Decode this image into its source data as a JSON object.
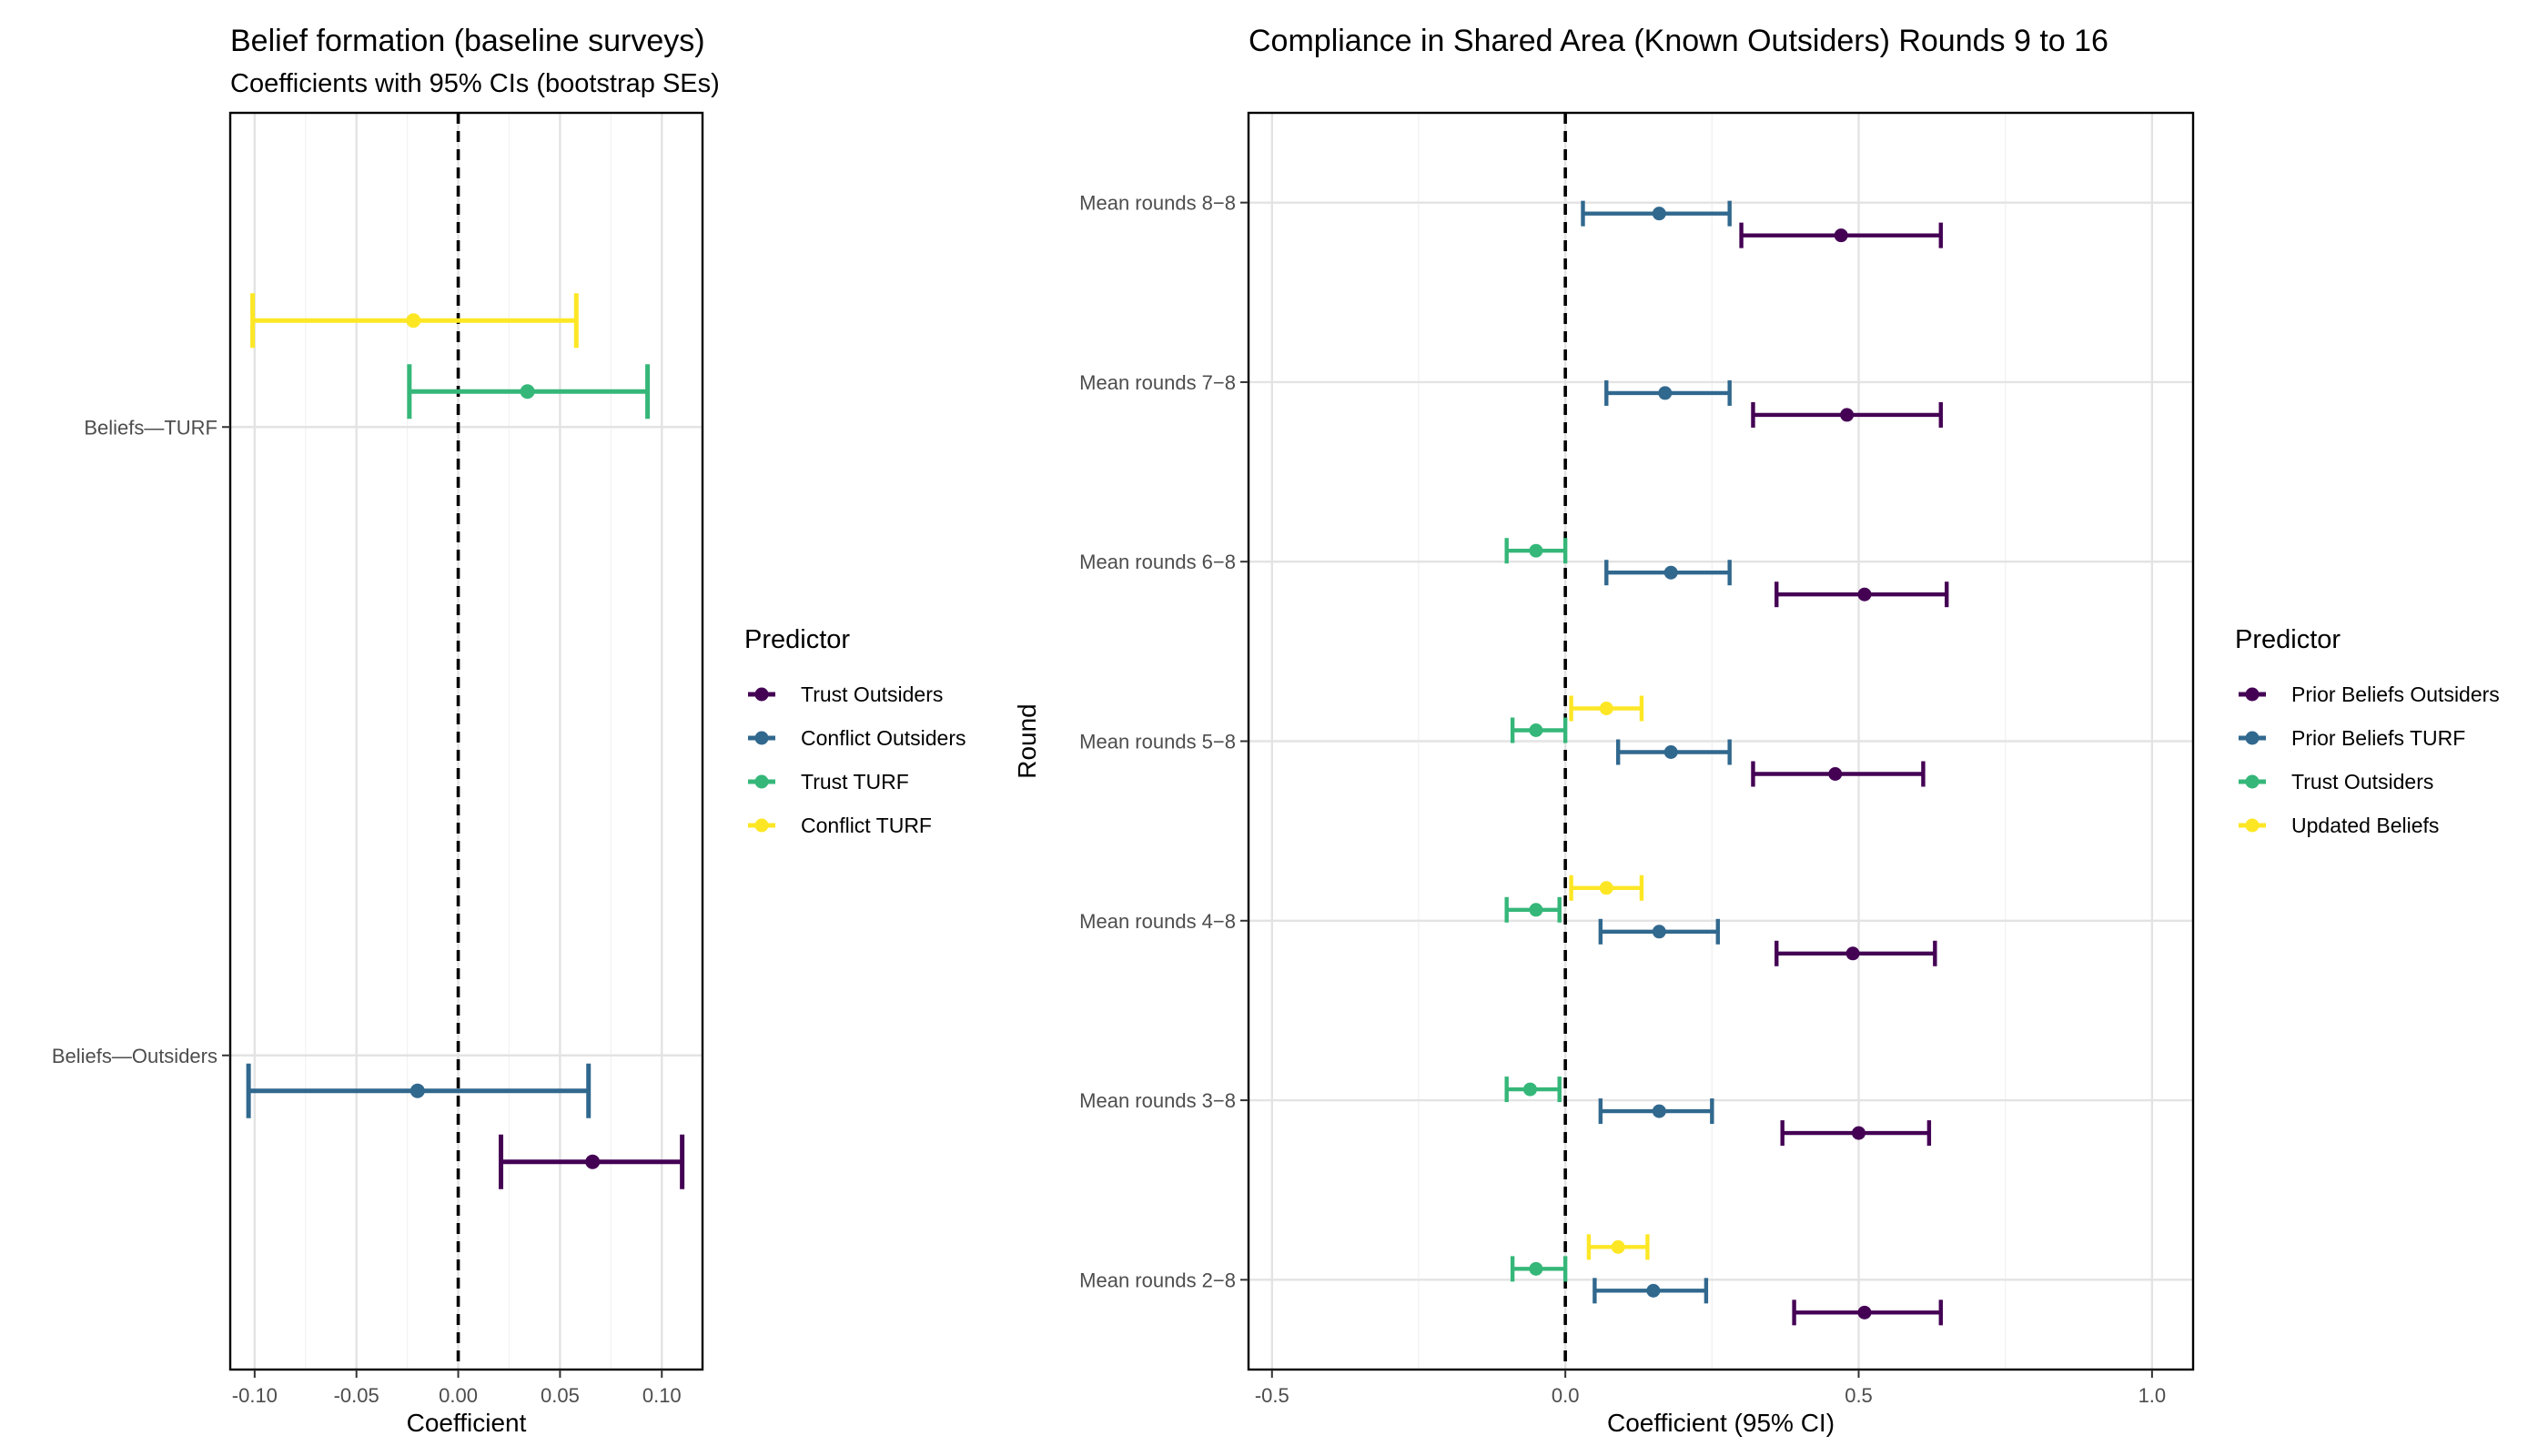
{
  "chart_data": [
    {
      "type": "errorbar",
      "title": "Belief formation (baseline surveys)",
      "subtitle": "Coefficients with 95% CIs (bootstrap SEs)",
      "xlabel": "Coefficient",
      "ylabel": "",
      "xlim": [
        -0.112,
        0.12
      ],
      "xticks": [
        -0.1,
        -0.05,
        0.0,
        0.05,
        0.1
      ],
      "xtick_labels": [
        "-0.10",
        "-0.05",
        "0.00",
        "0.05",
        "0.10"
      ],
      "reference_line": 0,
      "grid": true,
      "legend_position": "right",
      "legend_title": "Predictor",
      "categories": [
        "Beliefs—TURF",
        "Beliefs—Outsiders"
      ],
      "series": [
        {
          "name": "Trust Outsiders",
          "color": "#440154",
          "points": [
            {
              "category": "Beliefs—Outsiders",
              "estimate": 0.066,
              "low": 0.021,
              "high": 0.11
            }
          ]
        },
        {
          "name": "Conflict Outsiders",
          "color": "#31688e",
          "points": [
            {
              "category": "Beliefs—Outsiders",
              "estimate": -0.02,
              "low": -0.103,
              "high": 0.064
            }
          ]
        },
        {
          "name": "Trust TURF",
          "color": "#35b779",
          "points": [
            {
              "category": "Beliefs—TURF",
              "estimate": 0.034,
              "low": -0.024,
              "high": 0.093
            }
          ]
        },
        {
          "name": "Conflict TURF",
          "color": "#fde725",
          "points": [
            {
              "category": "Beliefs—TURF",
              "estimate": -0.022,
              "low": -0.101,
              "high": 0.058
            }
          ]
        }
      ]
    },
    {
      "type": "errorbar",
      "title": "Compliance in Shared Area (Known Outsiders) Rounds 9 to 16",
      "xlabel": "Coefficient (95% CI)",
      "ylabel": "Round",
      "xlim": [
        -0.54,
        1.07
      ],
      "xticks": [
        -0.5,
        0.0,
        0.5,
        1.0
      ],
      "xtick_labels": [
        "-0.5",
        "0.0",
        "0.5",
        "1.0"
      ],
      "reference_line": 0,
      "grid": true,
      "legend_position": "right",
      "legend_title": "Predictor",
      "categories": [
        "Mean rounds 8−8",
        "Mean rounds 7−8",
        "Mean rounds 6−8",
        "Mean rounds 5−8",
        "Mean rounds 4−8",
        "Mean rounds 3−8",
        "Mean rounds 2−8"
      ],
      "series": [
        {
          "name": "Prior Beliefs Outsiders",
          "color": "#440154",
          "points": [
            {
              "category": "Mean rounds 8−8",
              "estimate": 0.47,
              "low": 0.3,
              "high": 0.64
            },
            {
              "category": "Mean rounds 7−8",
              "estimate": 0.48,
              "low": 0.32,
              "high": 0.64
            },
            {
              "category": "Mean rounds 6−8",
              "estimate": 0.51,
              "low": 0.36,
              "high": 0.65
            },
            {
              "category": "Mean rounds 5−8",
              "estimate": 0.46,
              "low": 0.32,
              "high": 0.61
            },
            {
              "category": "Mean rounds 4−8",
              "estimate": 0.49,
              "low": 0.36,
              "high": 0.63
            },
            {
              "category": "Mean rounds 3−8",
              "estimate": 0.5,
              "low": 0.37,
              "high": 0.62
            },
            {
              "category": "Mean rounds 2−8",
              "estimate": 0.51,
              "low": 0.39,
              "high": 0.64
            }
          ]
        },
        {
          "name": "Prior Beliefs TURF",
          "color": "#31688e",
          "points": [
            {
              "category": "Mean rounds 8−8",
              "estimate": 0.16,
              "low": 0.03,
              "high": 0.28
            },
            {
              "category": "Mean rounds 7−8",
              "estimate": 0.17,
              "low": 0.07,
              "high": 0.28
            },
            {
              "category": "Mean rounds 6−8",
              "estimate": 0.18,
              "low": 0.07,
              "high": 0.28
            },
            {
              "category": "Mean rounds 5−8",
              "estimate": 0.18,
              "low": 0.09,
              "high": 0.28
            },
            {
              "category": "Mean rounds 4−8",
              "estimate": 0.16,
              "low": 0.06,
              "high": 0.26
            },
            {
              "category": "Mean rounds 3−8",
              "estimate": 0.16,
              "low": 0.06,
              "high": 0.25
            },
            {
              "category": "Mean rounds 2−8",
              "estimate": 0.15,
              "low": 0.05,
              "high": 0.24
            }
          ]
        },
        {
          "name": "Trust Outsiders",
          "color": "#35b779",
          "points": [
            {
              "category": "Mean rounds 6−8",
              "estimate": -0.05,
              "low": -0.1,
              "high": 0.0
            },
            {
              "category": "Mean rounds 5−8",
              "estimate": -0.05,
              "low": -0.09,
              "high": 0.0
            },
            {
              "category": "Mean rounds 4−8",
              "estimate": -0.05,
              "low": -0.1,
              "high": -0.01
            },
            {
              "category": "Mean rounds 3−8",
              "estimate": -0.06,
              "low": -0.1,
              "high": -0.01
            },
            {
              "category": "Mean rounds 2−8",
              "estimate": -0.05,
              "low": -0.09,
              "high": 0.0
            }
          ]
        },
        {
          "name": "Updated Beliefs",
          "color": "#fde725",
          "points": [
            {
              "category": "Mean rounds 5−8",
              "estimate": 0.07,
              "low": 0.01,
              "high": 0.13
            },
            {
              "category": "Mean rounds 4−8",
              "estimate": 0.07,
              "low": 0.01,
              "high": 0.13
            },
            {
              "category": "Mean rounds 2−8",
              "estimate": 0.09,
              "low": 0.04,
              "high": 0.14
            }
          ]
        }
      ]
    }
  ]
}
